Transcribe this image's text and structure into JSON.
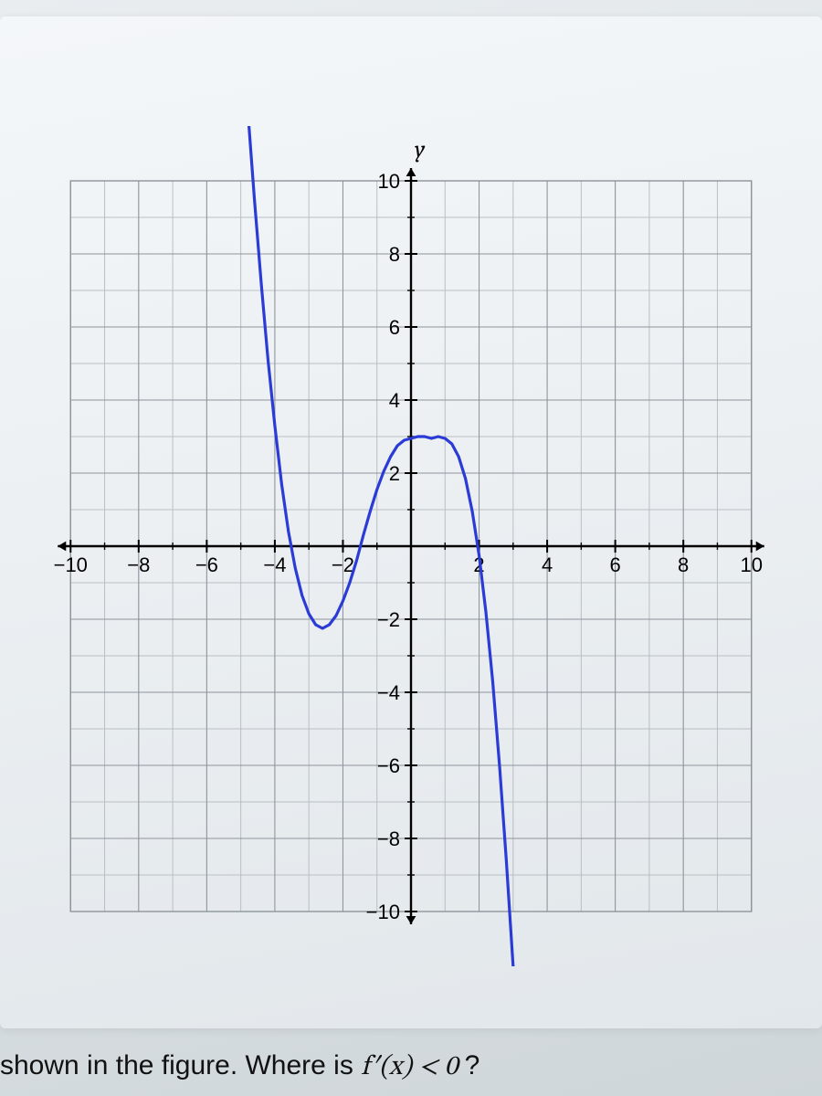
{
  "chart": {
    "type": "line",
    "x_axis_label": "",
    "y_axis_label": "y",
    "xlim": [
      -11,
      11
    ],
    "ylim": [
      -11,
      11
    ],
    "xticks": [
      -10,
      -8,
      -6,
      -4,
      -2,
      2,
      4,
      6,
      8,
      10
    ],
    "yticks": [
      -10,
      -8,
      -6,
      -4,
      -2,
      2,
      4,
      6,
      8,
      10
    ],
    "minor_step": 1,
    "major_step": 2,
    "grid_color_minor": "#b9bfc5",
    "grid_color_major": "#8d949b",
    "axis_color": "#000000",
    "tick_label_color": "#000000",
    "tick_font_size": 22,
    "background_color": "transparent",
    "curve_color": "#2a3bd6",
    "curve_width": 3.2,
    "curve_points": [
      [
        -4.8,
        12
      ],
      [
        -4.6,
        9.5
      ],
      [
        -4.4,
        7.2
      ],
      [
        -4.2,
        5.1
      ],
      [
        -4.0,
        3.3
      ],
      [
        -3.8,
        1.7
      ],
      [
        -3.6,
        0.4
      ],
      [
        -3.4,
        -0.6
      ],
      [
        -3.2,
        -1.35
      ],
      [
        -3.0,
        -1.85
      ],
      [
        -2.8,
        -2.15
      ],
      [
        -2.6,
        -2.25
      ],
      [
        -2.4,
        -2.15
      ],
      [
        -2.2,
        -1.9
      ],
      [
        -2.0,
        -1.5
      ],
      [
        -1.8,
        -1.0
      ],
      [
        -1.6,
        -0.4
      ],
      [
        -1.4,
        0.3
      ],
      [
        -1.2,
        0.95
      ],
      [
        -1.0,
        1.55
      ],
      [
        -0.8,
        2.05
      ],
      [
        -0.6,
        2.45
      ],
      [
        -0.4,
        2.75
      ],
      [
        -0.2,
        2.9
      ],
      [
        0.0,
        2.95
      ],
      [
        0.2,
        3.0
      ],
      [
        0.4,
        3.0
      ],
      [
        0.6,
        2.95
      ],
      [
        0.8,
        3.0
      ],
      [
        1.0,
        2.95
      ],
      [
        1.2,
        2.8
      ],
      [
        1.4,
        2.45
      ],
      [
        1.6,
        1.85
      ],
      [
        1.8,
        0.95
      ],
      [
        2.0,
        -0.25
      ],
      [
        2.2,
        -1.8
      ],
      [
        2.4,
        -3.7
      ],
      [
        2.6,
        -6.0
      ],
      [
        2.8,
        -8.6
      ],
      [
        3.0,
        -11.5
      ],
      [
        3.1,
        -13.0
      ]
    ]
  },
  "question": {
    "prefix": "shown in the figure. Where is ",
    "math": "f′(x) < 0",
    "suffix": "?"
  }
}
